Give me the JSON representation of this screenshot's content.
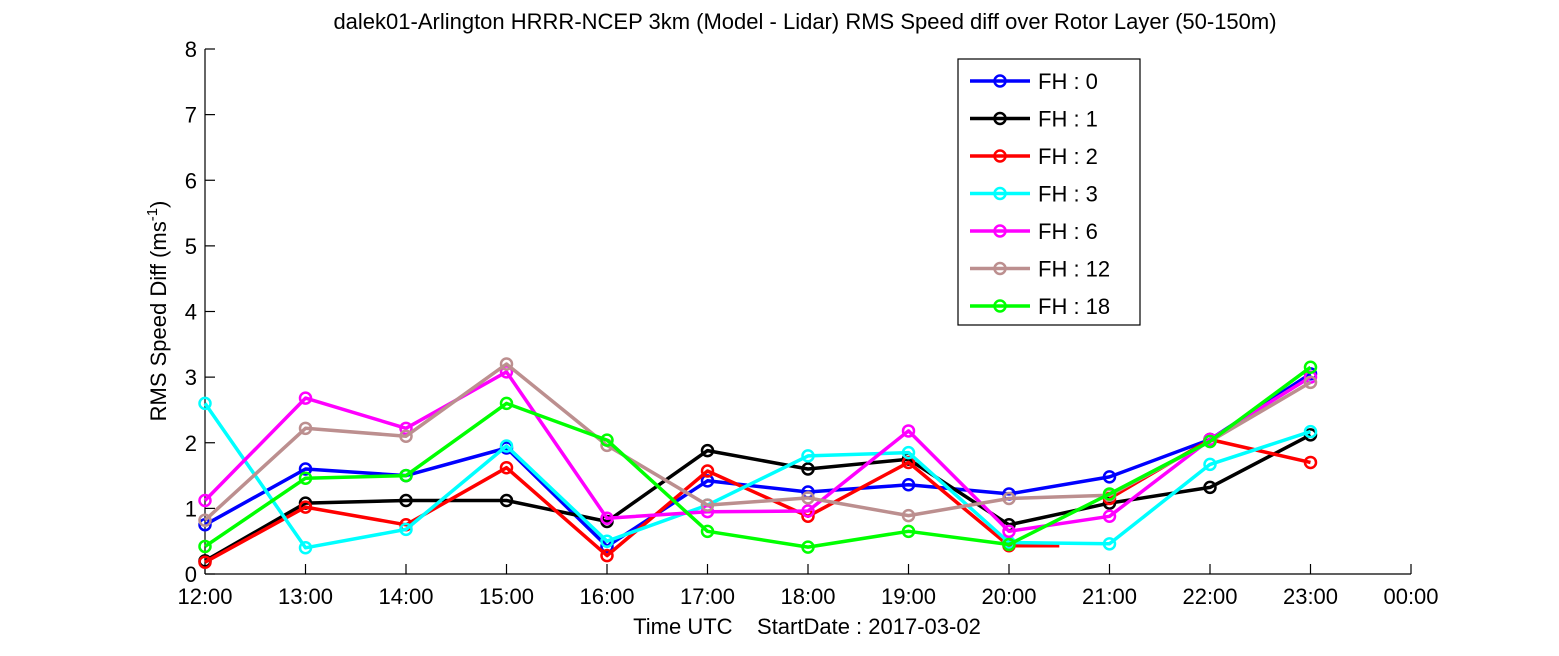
{
  "chart_data": {
    "type": "line",
    "title": "dalek01-Arlington HRRR-NCEP 3km (Model - Lidar) RMS Speed diff over Rotor Layer (50-150m)",
    "xlabel": "Time UTC    StartDate : 2017-03-02",
    "ylabel": "RMS Speed Diff (ms",
    "ylabel_sup": "-1",
    "ylabel_close": ")",
    "ylim": [
      0,
      8
    ],
    "yticks": [
      "0",
      "1",
      "2",
      "3",
      "4",
      "5",
      "6",
      "7",
      "8"
    ],
    "x_tick_labels": [
      "12:00",
      "13:00",
      "14:00",
      "15:00",
      "16:00",
      "17:00",
      "18:00",
      "19:00",
      "20:00",
      "21:00",
      "22:00",
      "23:00",
      "00:00"
    ],
    "xlim": [
      12,
      24
    ],
    "grid": false,
    "legend_position": "top-right",
    "series": [
      {
        "name": "FH : 0",
        "color": "#0000ff",
        "x": [
          12,
          13,
          14,
          15,
          16,
          17,
          18,
          19,
          20,
          21,
          22,
          23
        ],
        "values": [
          0.75,
          1.6,
          1.5,
          1.92,
          0.42,
          1.42,
          1.25,
          1.36,
          1.22,
          1.48,
          2.05,
          3.05
        ]
      },
      {
        "name": "FH : 1",
        "color": "#000000",
        "x": [
          12,
          13,
          14,
          15,
          16,
          17,
          18,
          19,
          20,
          21,
          22,
          23
        ],
        "values": [
          0.2,
          1.08,
          1.12,
          1.12,
          0.8,
          1.88,
          1.6,
          1.75,
          0.75,
          1.08,
          1.32,
          2.12
        ]
      },
      {
        "name": "FH : 2",
        "color": "#ff0000",
        "x": [
          12,
          13,
          14,
          15,
          16,
          17,
          18,
          19,
          20,
          20.5,
          null,
          21,
          22,
          23
        ],
        "values": [
          0.18,
          1.02,
          0.75,
          1.62,
          0.28,
          1.57,
          0.88,
          1.7,
          0.43,
          0.43,
          null,
          1.15,
          2.05,
          1.7
        ],
        "marker_x": [
          12,
          13,
          14,
          15,
          16,
          17,
          18,
          19,
          20,
          21,
          22,
          23
        ],
        "marker_values": [
          0.18,
          1.02,
          0.75,
          1.62,
          0.28,
          1.57,
          0.88,
          1.7,
          0.43,
          1.15,
          2.05,
          1.7
        ]
      },
      {
        "name": "FH : 3",
        "color": "#00ffff",
        "x": [
          12,
          13,
          14,
          15,
          16,
          17,
          18,
          19,
          20,
          21,
          22,
          23
        ],
        "values": [
          2.6,
          0.4,
          0.68,
          1.95,
          0.5,
          1.05,
          1.8,
          1.85,
          0.48,
          0.46,
          1.67,
          2.17
        ]
      },
      {
        "name": "FH : 6",
        "color": "#ff00ff",
        "x": [
          12,
          13,
          14,
          15,
          16,
          17,
          18,
          19,
          20,
          21,
          22,
          23
        ],
        "values": [
          1.12,
          2.68,
          2.22,
          3.08,
          0.85,
          0.95,
          0.96,
          2.18,
          0.65,
          0.88,
          2.05,
          3.0
        ]
      },
      {
        "name": "FH : 12",
        "color": "#bc8f8f",
        "x": [
          12,
          13,
          14,
          15,
          16,
          17,
          18,
          19,
          20,
          21,
          22,
          23
        ],
        "values": [
          0.82,
          2.22,
          2.1,
          3.2,
          1.96,
          1.05,
          1.16,
          0.89,
          1.15,
          1.2,
          2.02,
          2.92
        ]
      },
      {
        "name": "FH : 18",
        "color": "#00ff00",
        "x": [
          12,
          13,
          14,
          15,
          16,
          17,
          18,
          19,
          20,
          21,
          22,
          23
        ],
        "values": [
          0.42,
          1.46,
          1.5,
          2.6,
          2.04,
          0.65,
          0.41,
          0.65,
          0.45,
          1.22,
          2.02,
          3.15
        ]
      }
    ]
  }
}
